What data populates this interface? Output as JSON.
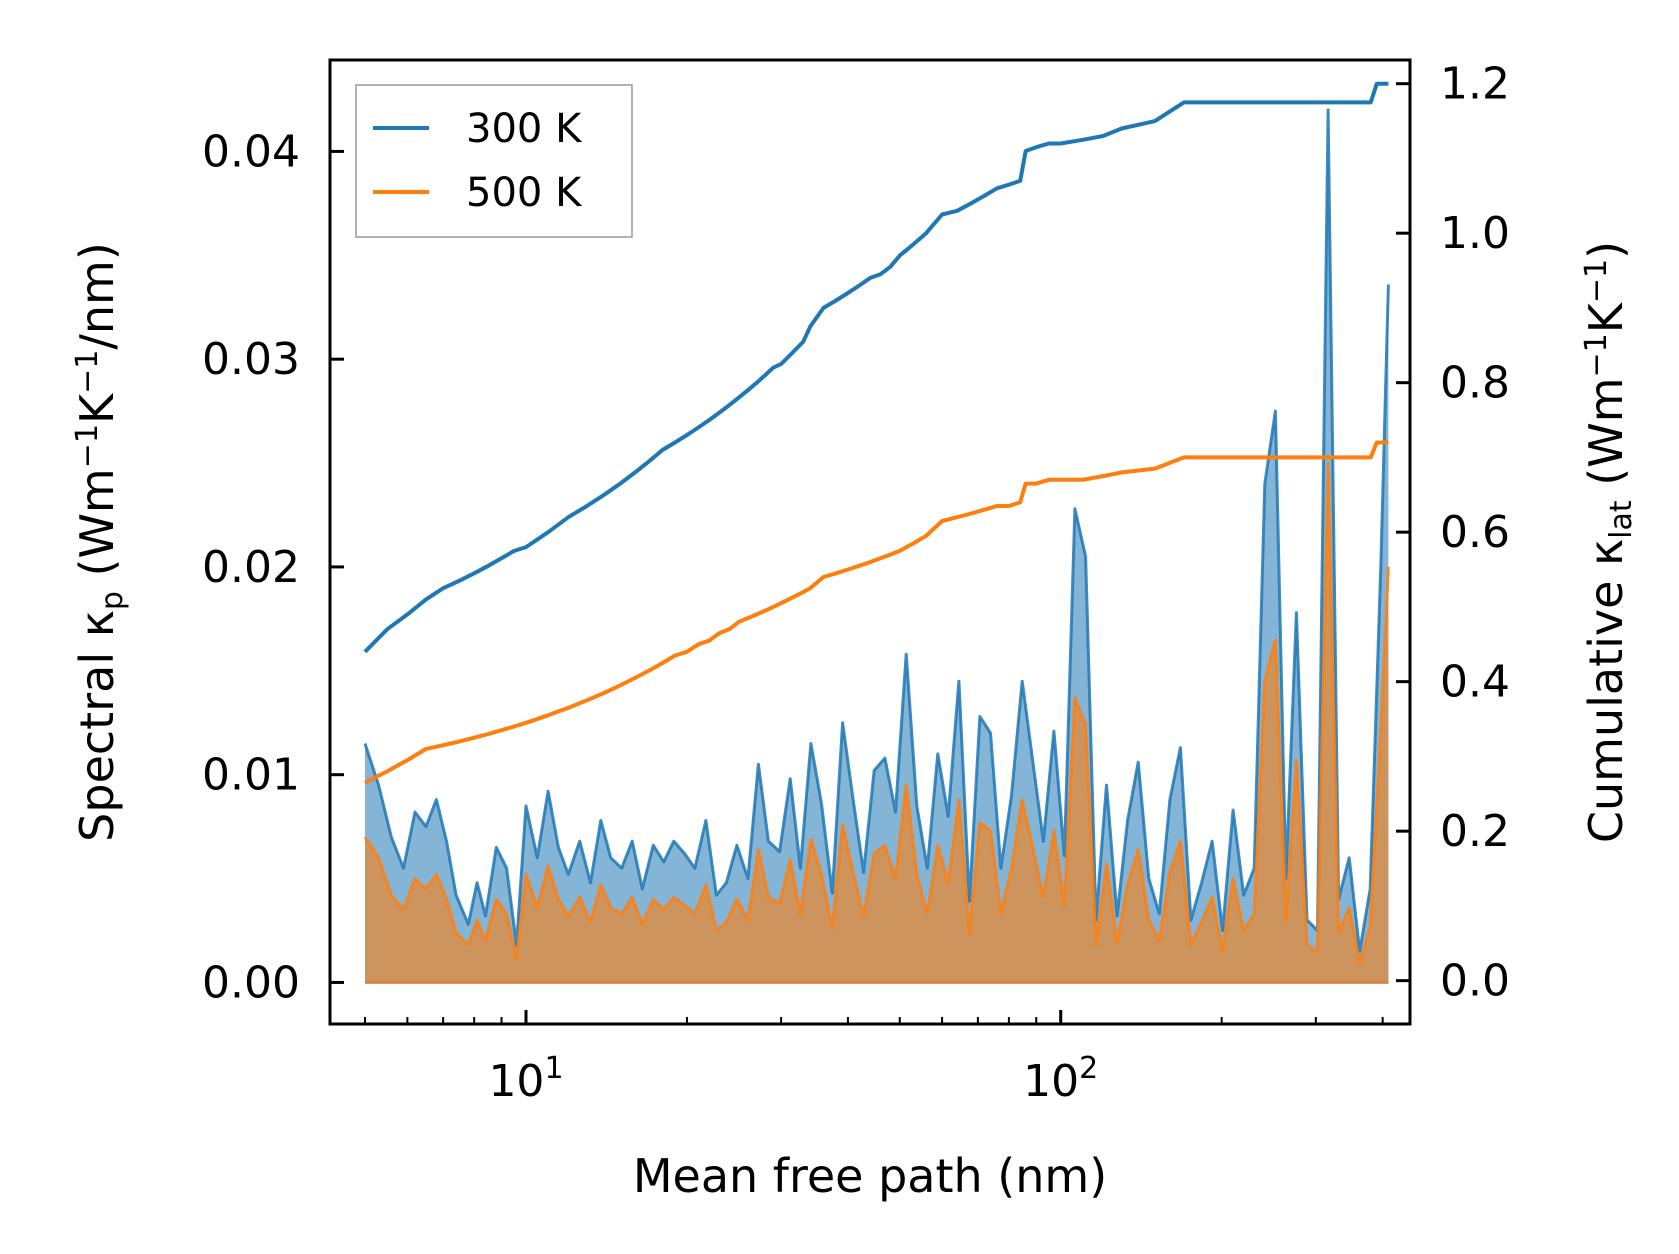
{
  "chart_data": {
    "type": "line",
    "title": "",
    "xlabel": "Mean free path (nm)",
    "xscale": "log",
    "xlim": [
      4.3,
      450
    ],
    "x_ticks": [
      {
        "value": 10,
        "base": "10",
        "exp": "1"
      },
      {
        "value": 100,
        "base": "10",
        "exp": "2"
      }
    ],
    "ylabel_left": {
      "main": "Spectral κ",
      "sub": "p",
      "unit_open": " (Wm",
      "unit_exp1": "−1",
      "unit_mid": "K",
      "unit_exp2": "−1",
      "unit_close": "/nm)"
    },
    "ylabel_right": {
      "main": "Cumulative κ",
      "sub": "lat",
      "unit_open": " (Wm",
      "unit_exp1": "−1",
      "unit_mid": "K",
      "unit_exp2": "−1",
      "unit_close": ")"
    },
    "ylim_left": [
      -0.002,
      0.0444
    ],
    "ylim_right": [
      -0.058,
      1.2317
    ],
    "y_ticks_left": [
      "0.00",
      "0.01",
      "0.02",
      "0.03",
      "0.04"
    ],
    "y_ticks_left_values": [
      0,
      0.01,
      0.02,
      0.03,
      0.04
    ],
    "y_ticks_right": [
      "0.0",
      "0.2",
      "0.4",
      "0.6",
      "0.8",
      "1.0",
      "1.2"
    ],
    "y_ticks_right_values": [
      0,
      0.2,
      0.4,
      0.6,
      0.8,
      1.0,
      1.2
    ],
    "legend": {
      "placement": "top-left",
      "entries": [
        "300 K",
        "500 K"
      ]
    },
    "colors": {
      "300K": "#1f77b4",
      "500K": "#ff7f0e",
      "fill_300K": "#1f77b4",
      "fill_500K": "#ff7f0e"
    },
    "series": [
      {
        "name": "300 K",
        "spectral": {
          "x": [
            5.0,
            5.3,
            5.6,
            5.9,
            6.2,
            6.5,
            6.8,
            7.1,
            7.4,
            7.8,
            8.1,
            8.4,
            8.8,
            9.2,
            9.6,
            10.0,
            10.5,
            11.0,
            11.5,
            12.0,
            12.6,
            13.2,
            13.8,
            14.4,
            15.1,
            15.8,
            16.5,
            17.3,
            18.1,
            18.9,
            19.8,
            20.7,
            21.7,
            22.7,
            23.7,
            24.8,
            26.0,
            27.2,
            28.4,
            29.8,
            31.2,
            32.6,
            34.1,
            35.7,
            37.4,
            39.1,
            40.9,
            42.8,
            44.8,
            46.9,
            49.1,
            51.4,
            53.8,
            56.3,
            58.9,
            61.6,
            64.5,
            67.5,
            70.6,
            73.9,
            77.3,
            80.9,
            84.7,
            88.6,
            92.8,
            97.1,
            101.6,
            106.3,
            111.3,
            116.4,
            121.8,
            127.5,
            133.4,
            139.6,
            146.1,
            152.9,
            160.0,
            167.4,
            175.2,
            183.4,
            191.9,
            200.8,
            210.1,
            219.9,
            230.1,
            240.8,
            252.0,
            263.7,
            275.9,
            288.8,
            302.2,
            316.2,
            330.9,
            346.3,
            362.4,
            379.2,
            396.8,
            410.0
          ],
          "y": [
            0.0115,
            0.0095,
            0.007,
            0.0055,
            0.0082,
            0.0075,
            0.0088,
            0.0068,
            0.0042,
            0.0028,
            0.0048,
            0.0032,
            0.0065,
            0.0055,
            0.0018,
            0.0085,
            0.006,
            0.0092,
            0.0065,
            0.0052,
            0.0068,
            0.0048,
            0.0078,
            0.006,
            0.0055,
            0.0068,
            0.0045,
            0.0066,
            0.0058,
            0.0068,
            0.0062,
            0.0055,
            0.0078,
            0.0042,
            0.0048,
            0.0066,
            0.005,
            0.0105,
            0.0068,
            0.0063,
            0.0098,
            0.0055,
            0.0115,
            0.0086,
            0.0043,
            0.0125,
            0.0088,
            0.0053,
            0.0102,
            0.0108,
            0.0082,
            0.0158,
            0.0085,
            0.0055,
            0.011,
            0.008,
            0.0145,
            0.0039,
            0.0128,
            0.012,
            0.0055,
            0.009,
            0.0145,
            0.0107,
            0.0068,
            0.0121,
            0.0061,
            0.0228,
            0.0205,
            0.003,
            0.0095,
            0.0032,
            0.0078,
            0.0106,
            0.005,
            0.0033,
            0.0088,
            0.0113,
            0.003,
            0.0048,
            0.0068,
            0.0025,
            0.0083,
            0.0042,
            0.0055,
            0.024,
            0.0275,
            0.005,
            0.0178,
            0.003,
            0.0025,
            0.042,
            0.004,
            0.006,
            0.0015,
            0.0045,
            0.02,
            0.0336
          ]
        },
        "cumulative": {
          "x": [
            5.0,
            5.5,
            6.0,
            6.5,
            7.0,
            7.5,
            8.0,
            8.5,
            9.0,
            9.5,
            10.0,
            11.0,
            12.0,
            13.0,
            14.0,
            15.0,
            16.0,
            17.0,
            18.0,
            19.0,
            20.0,
            21.0,
            22.0,
            23.0,
            24.0,
            25.0,
            26.0,
            27.0,
            28.0,
            29.0,
            30.0,
            31.0,
            32.0,
            33.0,
            34.0,
            36.0,
            38.0,
            40.0,
            42.0,
            44.0,
            46.0,
            48.0,
            50.0,
            53.0,
            56.0,
            60.0,
            64.0,
            68.0,
            72.0,
            76.0,
            80.0,
            84.0,
            86.0,
            90.0,
            95.0,
            100.0,
            110.0,
            120.0,
            130.0,
            150.0,
            170.0,
            180.0,
            200.0,
            250.0,
            300.0,
            380.0,
            390.0,
            410.0
          ],
          "y": [
            0.44,
            0.47,
            0.49,
            0.51,
            0.525,
            0.535,
            0.545,
            0.555,
            0.565,
            0.575,
            0.58,
            0.6,
            0.62,
            0.635,
            0.65,
            0.665,
            0.68,
            0.695,
            0.71,
            0.72,
            0.73,
            0.74,
            0.75,
            0.76,
            0.77,
            0.78,
            0.79,
            0.8,
            0.81,
            0.82,
            0.825,
            0.835,
            0.845,
            0.855,
            0.875,
            0.9,
            0.91,
            0.92,
            0.93,
            0.94,
            0.945,
            0.955,
            0.97,
            0.985,
            1.0,
            1.025,
            1.03,
            1.04,
            1.05,
            1.06,
            1.065,
            1.07,
            1.11,
            1.115,
            1.12,
            1.12,
            1.125,
            1.13,
            1.14,
            1.15,
            1.175,
            1.175,
            1.175,
            1.175,
            1.175,
            1.175,
            1.2,
            1.2
          ]
        }
      },
      {
        "name": "500 K",
        "spectral": {
          "x": [
            5.0,
            5.3,
            5.6,
            5.9,
            6.2,
            6.5,
            6.8,
            7.1,
            7.4,
            7.8,
            8.1,
            8.4,
            8.8,
            9.2,
            9.6,
            10.0,
            10.5,
            11.0,
            11.5,
            12.0,
            12.6,
            13.2,
            13.8,
            14.4,
            15.1,
            15.8,
            16.5,
            17.3,
            18.1,
            18.9,
            19.8,
            20.7,
            21.7,
            22.7,
            23.7,
            24.8,
            26.0,
            27.2,
            28.4,
            29.8,
            31.2,
            32.6,
            34.1,
            35.7,
            37.4,
            39.1,
            40.9,
            42.8,
            44.8,
            46.9,
            49.1,
            51.4,
            53.8,
            56.3,
            58.9,
            61.6,
            64.5,
            67.5,
            70.6,
            73.9,
            77.3,
            80.9,
            84.7,
            88.6,
            92.8,
            97.1,
            101.6,
            106.3,
            111.3,
            116.4,
            121.8,
            127.5,
            133.4,
            139.6,
            146.1,
            152.9,
            160.0,
            167.4,
            175.2,
            183.4,
            191.9,
            200.8,
            210.1,
            219.9,
            230.1,
            240.8,
            252.0,
            263.7,
            275.9,
            288.8,
            302.2,
            316.2,
            330.9,
            346.3,
            362.4,
            379.2,
            396.8,
            410.0
          ],
          "y": [
            0.007,
            0.006,
            0.0042,
            0.0035,
            0.005,
            0.0045,
            0.0052,
            0.004,
            0.0024,
            0.0018,
            0.003,
            0.002,
            0.004,
            0.0033,
            0.0011,
            0.0052,
            0.0036,
            0.0056,
            0.004,
            0.0032,
            0.0041,
            0.0029,
            0.0047,
            0.0036,
            0.0033,
            0.0041,
            0.0028,
            0.004,
            0.0035,
            0.0041,
            0.0037,
            0.0033,
            0.0047,
            0.0025,
            0.0029,
            0.004,
            0.003,
            0.0064,
            0.0041,
            0.0038,
            0.0059,
            0.0033,
            0.0069,
            0.0052,
            0.0026,
            0.0076,
            0.0053,
            0.0032,
            0.0062,
            0.0066,
            0.005,
            0.0095,
            0.0052,
            0.0033,
            0.0066,
            0.0048,
            0.0088,
            0.0023,
            0.0077,
            0.0073,
            0.0033,
            0.0055,
            0.0088,
            0.0065,
            0.0041,
            0.0073,
            0.0037,
            0.0137,
            0.0124,
            0.0018,
            0.0057,
            0.0019,
            0.0047,
            0.0064,
            0.003,
            0.002,
            0.0053,
            0.0068,
            0.0018,
            0.0029,
            0.0041,
            0.0015,
            0.005,
            0.0025,
            0.0033,
            0.0145,
            0.0165,
            0.003,
            0.0107,
            0.0018,
            0.0015,
            0.025,
            0.0024,
            0.0036,
            0.0009,
            0.0027,
            0.0121,
            0.02
          ]
        },
        "cumulative": {
          "x": [
            5.0,
            5.5,
            6.0,
            6.5,
            7.0,
            7.5,
            8.0,
            8.5,
            9.0,
            9.5,
            10.0,
            11.0,
            12.0,
            13.0,
            14.0,
            15.0,
            16.0,
            17.0,
            18.0,
            19.0,
            20.0,
            21.0,
            22.0,
            23.0,
            24.0,
            25.0,
            26.0,
            27.0,
            28.0,
            29.0,
            30.0,
            31.0,
            32.0,
            33.0,
            34.0,
            36.0,
            38.0,
            40.0,
            42.0,
            44.0,
            46.0,
            48.0,
            50.0,
            53.0,
            56.0,
            60.0,
            64.0,
            68.0,
            72.0,
            76.0,
            80.0,
            84.0,
            86.0,
            90.0,
            95.0,
            100.0,
            110.0,
            120.0,
            130.0,
            150.0,
            170.0,
            180.0,
            200.0,
            250.0,
            300.0,
            380.0,
            390.0,
            410.0
          ],
          "y": [
            0.265,
            0.28,
            0.295,
            0.31,
            0.315,
            0.32,
            0.325,
            0.33,
            0.335,
            0.34,
            0.345,
            0.355,
            0.365,
            0.375,
            0.385,
            0.395,
            0.405,
            0.415,
            0.425,
            0.435,
            0.44,
            0.45,
            0.455,
            0.465,
            0.47,
            0.48,
            0.485,
            0.49,
            0.495,
            0.5,
            0.505,
            0.51,
            0.515,
            0.52,
            0.525,
            0.54,
            0.545,
            0.55,
            0.555,
            0.56,
            0.565,
            0.57,
            0.575,
            0.585,
            0.595,
            0.615,
            0.62,
            0.625,
            0.63,
            0.635,
            0.635,
            0.64,
            0.665,
            0.665,
            0.67,
            0.67,
            0.67,
            0.675,
            0.68,
            0.685,
            0.7,
            0.7,
            0.7,
            0.7,
            0.7,
            0.7,
            0.72,
            0.72
          ]
        }
      }
    ]
  }
}
